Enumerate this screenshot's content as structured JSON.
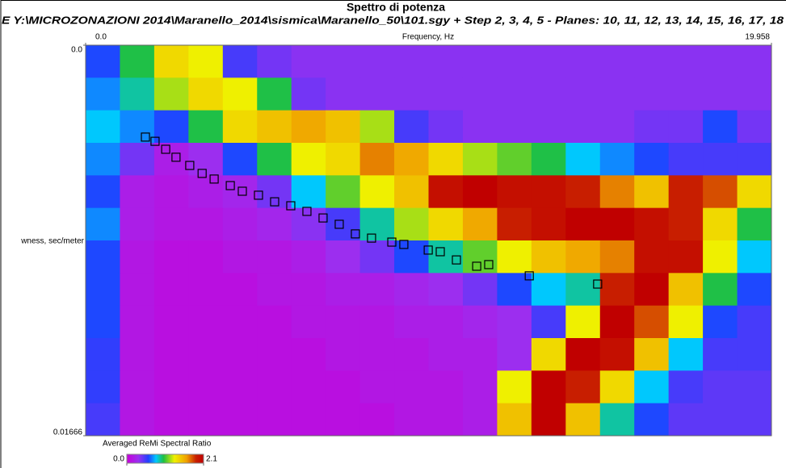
{
  "chart_data": {
    "type": "heatmap",
    "title": "Spettro di potenza",
    "subtitle": "E Y:\\MICROZONAZIONI 2014\\Maranello_2014\\sismica\\Maranello_50\\101.sgy + Step 2, 3, 4, 5 - Planes: 10, 11, 12, 13, 14, 15, 16, 17, 18",
    "x_label": "Frequency, Hz",
    "y_label": "wness, sec/meter",
    "xlim": [
      0,
      19.958
    ],
    "xticks": [
      {
        "value": 0,
        "label": "0.0"
      },
      19.958
    ],
    "ylim": [
      0,
      0.01666
    ],
    "yticks": [
      {
        "value": 0,
        "label": "0.0"
      },
      0.01666
    ],
    "colorbar_title": "Averaged ReMi Spectral Ratio",
    "clim": [
      0,
      2.1
    ],
    "cticks": [
      {
        "value": 0,
        "label": "0.0"
      },
      2.1
    ],
    "colormap": [
      [
        0,
        "#c800d8"
      ],
      [
        0.15,
        "#9a30f0"
      ],
      [
        0.28,
        "#2040ff"
      ],
      [
        0.38,
        "#00c8ff"
      ],
      [
        0.48,
        "#20c040"
      ],
      [
        0.62,
        "#f0f000"
      ],
      [
        0.78,
        "#f0a000"
      ],
      [
        0.9,
        "#c82000"
      ],
      [
        1,
        "#c00000"
      ]
    ],
    "z": [
      [
        0.6,
        1.0,
        1.4,
        1.3,
        0.5,
        0.4,
        0.35,
        0.35,
        0.35,
        0.35,
        0.35,
        0.35,
        0.35,
        0.35,
        0.35,
        0.35,
        0.35,
        0.35,
        0.35,
        0.35
      ],
      [
        0.7,
        0.9,
        1.2,
        1.4,
        1.3,
        1.0,
        0.4,
        0.35,
        0.35,
        0.35,
        0.35,
        0.35,
        0.35,
        0.35,
        0.35,
        0.35,
        0.35,
        0.35,
        0.35,
        0.35
      ],
      [
        0.8,
        0.7,
        0.6,
        1.0,
        1.4,
        1.5,
        1.6,
        1.5,
        1.2,
        0.5,
        0.4,
        0.35,
        0.35,
        0.35,
        0.35,
        0.35,
        0.4,
        0.4,
        0.6,
        0.4
      ],
      [
        0.7,
        0.4,
        0.2,
        0.3,
        0.6,
        1.0,
        1.3,
        1.4,
        1.7,
        1.6,
        1.4,
        1.2,
        1.1,
        1.0,
        0.8,
        0.7,
        0.6,
        0.5,
        0.5,
        0.5
      ],
      [
        0.6,
        0.2,
        0.15,
        0.2,
        0.25,
        0.4,
        0.8,
        1.1,
        1.3,
        1.5,
        2.0,
        2.1,
        2.0,
        2.0,
        1.9,
        1.7,
        1.5,
        1.9,
        1.8,
        1.4
      ],
      [
        0.7,
        0.2,
        0.15,
        0.15,
        0.2,
        0.25,
        0.35,
        0.5,
        0.9,
        1.2,
        1.4,
        1.6,
        1.9,
        2.0,
        2.1,
        2.1,
        2.0,
        1.9,
        1.4,
        1.0
      ],
      [
        0.6,
        0.15,
        0.1,
        0.1,
        0.15,
        0.15,
        0.2,
        0.3,
        0.4,
        0.6,
        0.9,
        1.1,
        1.3,
        1.5,
        1.6,
        1.7,
        2.0,
        2.0,
        1.3,
        0.8
      ],
      [
        0.6,
        0.15,
        0.1,
        0.1,
        0.1,
        0.15,
        0.15,
        0.2,
        0.2,
        0.25,
        0.3,
        0.4,
        0.6,
        0.8,
        0.9,
        1.9,
        2.1,
        1.5,
        1.0,
        0.6
      ],
      [
        0.6,
        0.15,
        0.1,
        0.1,
        0.1,
        0.1,
        0.15,
        0.15,
        0.15,
        0.2,
        0.2,
        0.25,
        0.3,
        0.5,
        1.3,
        2.1,
        1.8,
        1.3,
        0.6,
        0.5
      ],
      [
        0.55,
        0.15,
        0.1,
        0.1,
        0.1,
        0.1,
        0.1,
        0.15,
        0.15,
        0.15,
        0.2,
        0.2,
        0.3,
        1.4,
        2.1,
        2.0,
        1.5,
        0.8,
        0.5,
        0.5
      ],
      [
        0.55,
        0.15,
        0.1,
        0.1,
        0.1,
        0.1,
        0.1,
        0.1,
        0.15,
        0.15,
        0.15,
        0.2,
        1.3,
        2.1,
        1.9,
        1.4,
        0.8,
        0.5,
        0.45,
        0.45
      ],
      [
        0.5,
        0.15,
        0.1,
        0.1,
        0.1,
        0.1,
        0.1,
        0.1,
        0.1,
        0.15,
        0.15,
        0.2,
        1.5,
        2.1,
        1.5,
        0.9,
        0.6,
        0.45,
        0.45,
        0.45
      ]
    ],
    "points": {
      "x": [
        1.74,
        2.02,
        2.33,
        2.63,
        3.03,
        3.39,
        3.74,
        4.21,
        4.56,
        5.03,
        5.5,
        5.97,
        6.44,
        6.91,
        7.38,
        7.85,
        8.32,
        8.91,
        9.26,
        9.97,
        10.32,
        10.79,
        11.38,
        11.73,
        12.91,
        14.9
      ],
      "y": [
        0.00392,
        0.0041,
        0.00444,
        0.00478,
        0.00513,
        0.00547,
        0.00571,
        0.00599,
        0.00623,
        0.0064,
        0.00668,
        0.00685,
        0.00709,
        0.00737,
        0.00764,
        0.00805,
        0.00823,
        0.0084,
        0.0085,
        0.00874,
        0.00881,
        0.00916,
        0.00943,
        0.00936,
        0.00984,
        0.01019
      ]
    }
  }
}
